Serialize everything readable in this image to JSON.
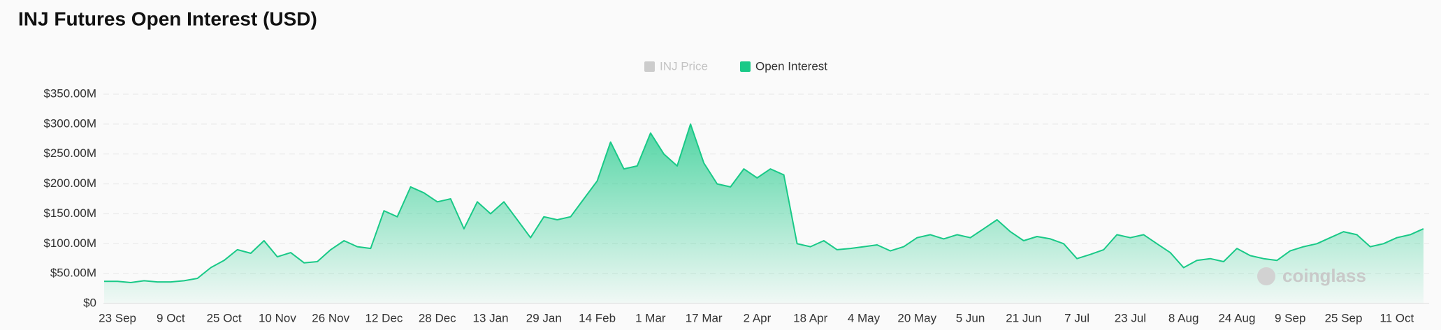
{
  "chart_data": {
    "type": "area",
    "title": "INJ Futures Open Interest (USD)",
    "watermark": "coinglass",
    "legend": [
      {
        "name": "INJ Price",
        "color": "#cccccc",
        "hidden": true
      },
      {
        "name": "Open Interest",
        "color": "#19c987",
        "hidden": false
      }
    ],
    "categories": [
      null,
      "23 Sep",
      null,
      null,
      null,
      "9 Oct",
      null,
      null,
      null,
      "25 Oct",
      null,
      null,
      null,
      "10 Nov",
      null,
      null,
      null,
      "26 Nov",
      null,
      null,
      null,
      "12 Dec",
      null,
      null,
      null,
      "28 Dec",
      null,
      null,
      null,
      "13 Jan",
      null,
      null,
      null,
      "29 Jan",
      null,
      null,
      null,
      "14 Feb",
      null,
      null,
      null,
      "1 Mar",
      null,
      null,
      null,
      "17 Mar",
      null,
      null,
      null,
      "2 Apr",
      null,
      null,
      null,
      "18 Apr",
      null,
      null,
      null,
      "4 May",
      null,
      null,
      null,
      "20 May",
      null,
      null,
      null,
      "5 Jun",
      null,
      null,
      null,
      "21 Jun",
      null,
      null,
      null,
      "7 Jul",
      null,
      null,
      null,
      "23 Jul",
      null,
      null,
      null,
      "8 Aug",
      null,
      null,
      null,
      "24 Aug",
      null,
      null,
      null,
      "9 Sep",
      null,
      null,
      null,
      "25 Sep",
      null,
      null,
      null,
      "11 Oct",
      null,
      null
    ],
    "series": [
      {
        "name": "Open Interest",
        "color": "#19c987",
        "values": [
          37000000,
          37000000,
          35000000,
          38000000,
          36000000,
          36000000,
          38000000,
          42000000,
          60000000,
          72000000,
          90000000,
          84000000,
          105000000,
          78000000,
          85000000,
          68000000,
          70000000,
          90000000,
          105000000,
          95000000,
          92000000,
          155000000,
          145000000,
          195000000,
          185000000,
          170000000,
          175000000,
          125000000,
          170000000,
          150000000,
          170000000,
          140000000,
          110000000,
          145000000,
          140000000,
          145000000,
          175000000,
          205000000,
          270000000,
          225000000,
          230000000,
          285000000,
          250000000,
          230000000,
          300000000,
          235000000,
          200000000,
          195000000,
          225000000,
          210000000,
          225000000,
          215000000,
          100000000,
          95000000,
          105000000,
          90000000,
          92000000,
          95000000,
          98000000,
          88000000,
          95000000,
          110000000,
          115000000,
          108000000,
          115000000,
          110000000,
          125000000,
          140000000,
          120000000,
          105000000,
          112000000,
          108000000,
          100000000,
          75000000,
          82000000,
          90000000,
          115000000,
          110000000,
          115000000,
          100000000,
          85000000,
          60000000,
          72000000,
          75000000,
          70000000,
          92000000,
          80000000,
          75000000,
          72000000,
          88000000,
          95000000,
          100000000,
          110000000,
          120000000,
          115000000,
          95000000,
          100000000,
          110000000,
          115000000,
          125000000
        ]
      }
    ],
    "ylim": [
      0,
      350000000
    ],
    "yticks": [
      {
        "value": 0,
        "label": "$0"
      },
      {
        "value": 50000000,
        "label": "$50.00M"
      },
      {
        "value": 100000000,
        "label": "$100.00M"
      },
      {
        "value": 150000000,
        "label": "$150.00M"
      },
      {
        "value": 200000000,
        "label": "$200.00M"
      },
      {
        "value": 250000000,
        "label": "$250.00M"
      },
      {
        "value": 300000000,
        "label": "$300.00M"
      },
      {
        "value": 350000000,
        "label": "$350.00M"
      }
    ],
    "grid": true
  }
}
